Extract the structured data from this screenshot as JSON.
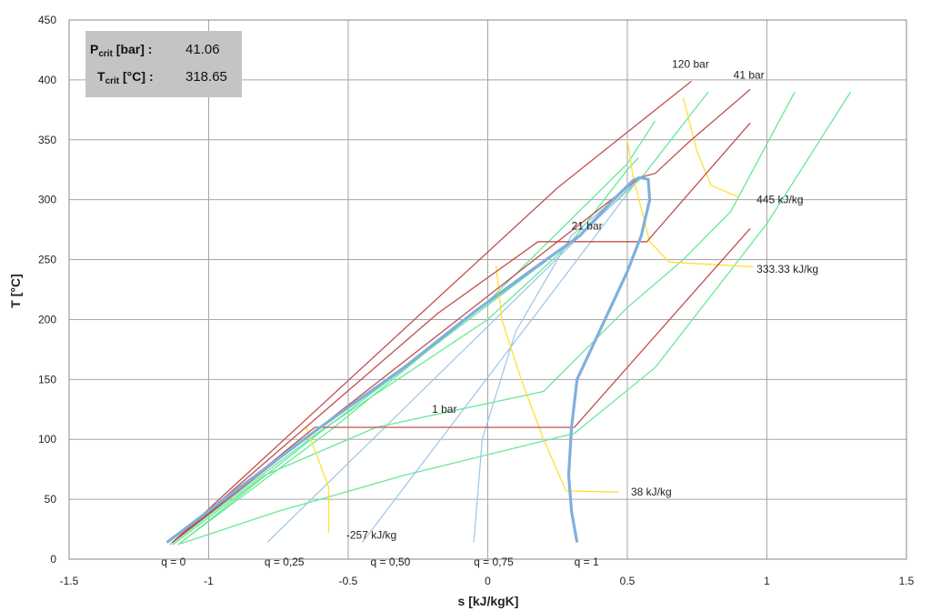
{
  "chart_data": {
    "type": "line",
    "title": "",
    "xlabel": "s  [kJ/kgK]",
    "ylabel": "T  [°C]",
    "xlim": [
      -1.5,
      1.5
    ],
    "ylim": [
      0,
      450
    ],
    "xticks": [
      -1.5,
      -1,
      -0.5,
      0,
      0.5,
      1,
      1.5
    ],
    "yticks": [
      0,
      50,
      100,
      150,
      200,
      250,
      300,
      350,
      400,
      450
    ],
    "grid": true,
    "colors": {
      "saturation": "#7fb0dc",
      "quality": "#9ec4e6",
      "isobar": "#c0504d",
      "isochore": "#66e898",
      "isenthalp": "#ffe033",
      "grid": "#a6a6a6",
      "panel": "#c4c4c4"
    },
    "info_box": {
      "rows": [
        {
          "sym": "P",
          "sub": "crit",
          "unit": " [bar] :",
          "value": "41.06"
        },
        {
          "sym": "T",
          "sub": "crit",
          "unit": " [°C] :",
          "value": "318.65"
        }
      ]
    },
    "saturation_dome": {
      "liquid": [
        [
          -1.15,
          14
        ],
        [
          -0.9,
          58
        ],
        [
          -0.6,
          110
        ],
        [
          -0.3,
          160
        ],
        [
          -0.05,
          206
        ],
        [
          0.15,
          240
        ],
        [
          0.33,
          270
        ],
        [
          0.45,
          300
        ],
        [
          0.52,
          316
        ],
        [
          0.545,
          318.65
        ]
      ],
      "vapor": [
        [
          0.545,
          318.65
        ],
        [
          0.575,
          317
        ],
        [
          0.58,
          300
        ],
        [
          0.55,
          270
        ],
        [
          0.5,
          240
        ],
        [
          0.4,
          190
        ],
        [
          0.32,
          150
        ],
        [
          0.3,
          110
        ],
        [
          0.29,
          70
        ],
        [
          0.3,
          40
        ],
        [
          0.32,
          14
        ]
      ]
    },
    "quality_lines": [
      {
        "label": "q = 0",
        "label_at": [
          -1.17,
          -1
        ],
        "points": []
      },
      {
        "label": "q = 0,25",
        "label_at": [
          -0.8,
          -1
        ],
        "points": [
          [
            -0.79,
            14
          ],
          [
            0.545,
            318.65
          ]
        ]
      },
      {
        "label": "q = 0,50",
        "label_at": [
          -0.42,
          -1
        ],
        "points": [
          [
            -0.45,
            14
          ],
          [
            0.545,
            318.65
          ]
        ]
      },
      {
        "label": "q = 0,75",
        "label_at": [
          -0.05,
          -1
        ],
        "points": [
          [
            -0.05,
            14
          ],
          [
            -0.02,
            100
          ],
          [
            0.1,
            190
          ],
          [
            0.3,
            270
          ],
          [
            0.545,
            318.65
          ]
        ]
      },
      {
        "label": "q = 1",
        "label_at": [
          0.31,
          -1
        ],
        "points": []
      }
    ],
    "isobars": [
      {
        "label": "1 bar",
        "label_at": [
          -0.2,
          122
        ],
        "points": [
          [
            -1.13,
            14
          ],
          [
            -0.62,
            110
          ],
          [
            0.31,
            110
          ],
          [
            0.94,
            276
          ]
        ]
      },
      {
        "label": "21 bar",
        "label_at": [
          0.3,
          275
        ],
        "points": [
          [
            -1.13,
            14
          ],
          [
            -0.18,
            205
          ],
          [
            0.18,
            265
          ],
          [
            0.57,
            265
          ],
          [
            0.94,
            364
          ]
        ]
      },
      {
        "label": "41 bar",
        "label_at": [
          0.88,
          401
        ],
        "points": [
          [
            -1.13,
            14
          ],
          [
            0.545,
            318.65
          ],
          [
            0.6,
            322
          ],
          [
            0.72,
            348
          ],
          [
            0.94,
            392
          ]
        ]
      },
      {
        "label": "120 bar",
        "label_at": [
          0.66,
          410
        ],
        "points": [
          [
            -1.13,
            14
          ],
          [
            0.25,
            310
          ],
          [
            0.73,
            399
          ]
        ]
      }
    ],
    "isochores": [
      {
        "points": [
          [
            -1.14,
            12
          ],
          [
            -0.6,
            107
          ],
          [
            0,
            200
          ],
          [
            0.55,
            318
          ],
          [
            0.79,
            390
          ]
        ]
      },
      {
        "points": [
          [
            -1.1,
            14
          ],
          [
            -0.55,
            110
          ],
          [
            0,
            215
          ],
          [
            0.5,
            330
          ],
          [
            0.6,
            366
          ]
        ]
      },
      {
        "points": [
          [
            -1.11,
            12
          ],
          [
            -0.6,
            106
          ],
          [
            0.3,
            265
          ],
          [
            0.5,
            325
          ],
          [
            0.54,
            335
          ]
        ]
      },
      {
        "points": [
          [
            -1.13,
            12
          ],
          [
            -0.8,
            70
          ],
          [
            -0.4,
            110
          ],
          [
            0.2,
            140
          ],
          [
            0.5,
            210
          ],
          [
            0.7,
            250
          ],
          [
            0.87,
            290
          ],
          [
            1.1,
            390
          ]
        ]
      },
      {
        "points": [
          [
            -1.1,
            13
          ],
          [
            -0.75,
            40
          ],
          [
            -0.3,
            70
          ],
          [
            0.31,
            105
          ],
          [
            0.6,
            160
          ],
          [
            0.8,
            220
          ],
          [
            1.0,
            280
          ],
          [
            1.3,
            390
          ]
        ]
      }
    ],
    "isenthalps": [
      {
        "label": "-257 kJ/kg",
        "label_at": [
          -0.52,
          20
        ],
        "points": [
          [
            -0.65,
            110
          ],
          [
            -0.57,
            60
          ],
          [
            -0.57,
            22
          ]
        ]
      },
      {
        "label": "38 kJ/kg",
        "label_at": [
          0.5,
          56
        ],
        "points": [
          [
            0.03,
            245
          ],
          [
            0.05,
            200
          ],
          [
            0.12,
            150
          ],
          [
            0.2,
            100
          ],
          [
            0.28,
            57
          ],
          [
            0.47,
            56
          ]
        ]
      },
      {
        "label": "333.33 kJ/kg",
        "label_at": [
          0.95,
          242
        ],
        "points": [
          [
            0.5,
            350
          ],
          [
            0.52,
            320
          ],
          [
            0.58,
            265
          ],
          [
            0.65,
            248
          ],
          [
            0.95,
            244
          ]
        ]
      },
      {
        "label": "445 kJ/kg",
        "label_at": [
          0.95,
          300
        ],
        "points": [
          [
            0.7,
            385
          ],
          [
            0.75,
            340
          ],
          [
            0.8,
            312
          ],
          [
            0.9,
            302
          ]
        ]
      }
    ]
  }
}
